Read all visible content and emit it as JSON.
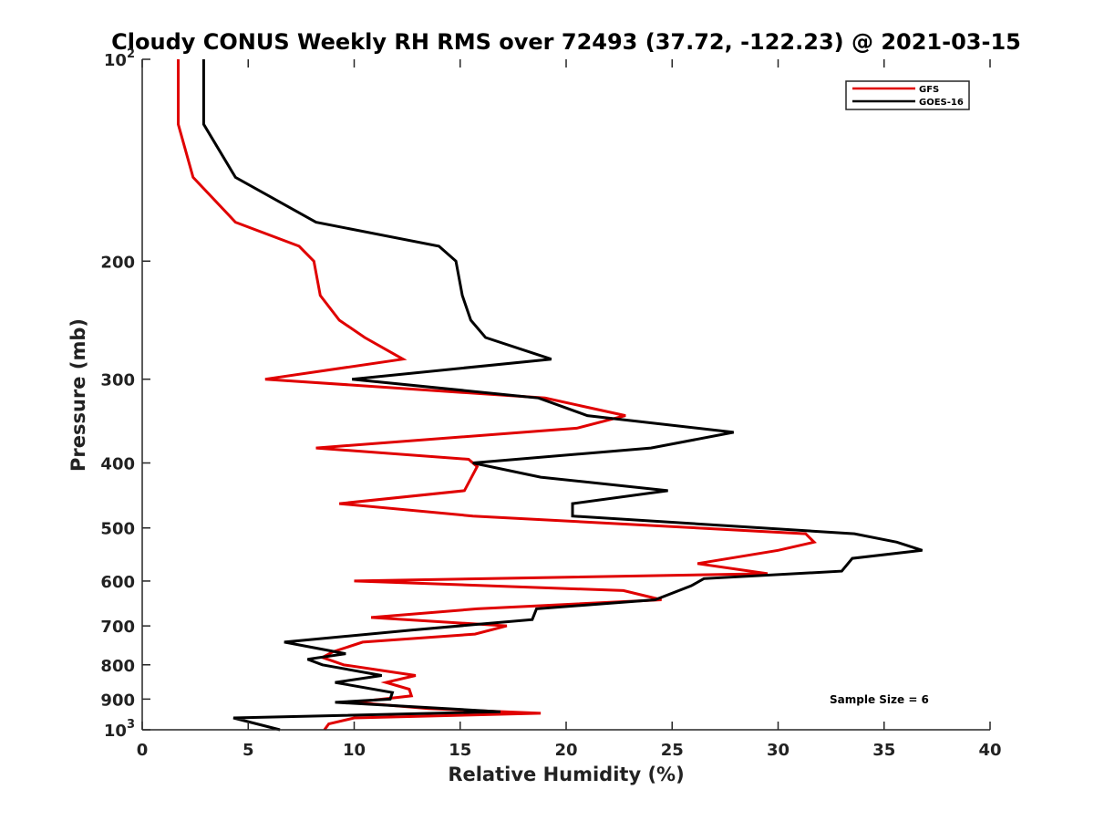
{
  "chart_data": {
    "type": "line",
    "title": "Cloudy CONUS Weekly RH RMS over 72493 (37.72, -122.23) @ 2021-03-15",
    "xlabel": "Relative Humidity (%)",
    "ylabel": "Pressure (mb)",
    "xlim": [
      0,
      40
    ],
    "ylim": [
      100,
      1000
    ],
    "y_scale": "log",
    "y_reversed": true,
    "grid": false,
    "legend_position": "top-right",
    "x_ticks": [
      0,
      5,
      10,
      15,
      20,
      25,
      30,
      35,
      40
    ],
    "x_tick_labels": [
      "0",
      "5",
      "10",
      "15",
      "20",
      "25",
      "30",
      "35",
      "40"
    ],
    "y_ticks": [
      100,
      200,
      300,
      400,
      500,
      600,
      700,
      800,
      900,
      1000
    ],
    "y_tick_labels": [
      {
        "base": "10",
        "exp": "2"
      },
      {
        "base": "200",
        "exp": ""
      },
      {
        "base": "300",
        "exp": ""
      },
      {
        "base": "400",
        "exp": ""
      },
      {
        "base": "500",
        "exp": ""
      },
      {
        "base": "600",
        "exp": ""
      },
      {
        "base": "700",
        "exp": ""
      },
      {
        "base": "800",
        "exp": ""
      },
      {
        "base": "900",
        "exp": ""
      },
      {
        "base": "10",
        "exp": "3"
      }
    ],
    "annotation": "Sample Size = 6",
    "series": [
      {
        "name": "GFS",
        "color": "#e00000",
        "points": [
          [
            1.7,
            100
          ],
          [
            1.7,
            125
          ],
          [
            2.4,
            150
          ],
          [
            4.4,
            175
          ],
          [
            7.4,
            190
          ],
          [
            8.1,
            200
          ],
          [
            8.4,
            225
          ],
          [
            9.3,
            245
          ],
          [
            10.5,
            260
          ],
          [
            12.3,
            280
          ],
          [
            5.8,
            300
          ],
          [
            19.0,
            320
          ],
          [
            22.8,
            340
          ],
          [
            20.5,
            355
          ],
          [
            8.2,
            380
          ],
          [
            15.4,
            395
          ],
          [
            15.8,
            405
          ],
          [
            15.2,
            440
          ],
          [
            9.3,
            460
          ],
          [
            15.6,
            480
          ],
          [
            31.3,
            510
          ],
          [
            31.7,
            525
          ],
          [
            30.0,
            540
          ],
          [
            26.2,
            565
          ],
          [
            29.5,
            585
          ],
          [
            10.0,
            600
          ],
          [
            22.7,
            620
          ],
          [
            24.5,
            640
          ],
          [
            15.8,
            660
          ],
          [
            10.8,
            680
          ],
          [
            17.2,
            700
          ],
          [
            15.7,
            720
          ],
          [
            10.4,
            740
          ],
          [
            9.0,
            765
          ],
          [
            8.5,
            780
          ],
          [
            9.5,
            800
          ],
          [
            12.9,
            830
          ],
          [
            11.5,
            850
          ],
          [
            12.6,
            870
          ],
          [
            12.7,
            890
          ],
          [
            10.0,
            910
          ],
          [
            13.5,
            930
          ],
          [
            18.8,
            945
          ],
          [
            10.0,
            960
          ],
          [
            8.8,
            980
          ],
          [
            8.6,
            1000
          ]
        ]
      },
      {
        "name": "GOES-16",
        "color": "#000000",
        "points": [
          [
            2.9,
            100
          ],
          [
            2.9,
            125
          ],
          [
            4.4,
            150
          ],
          [
            8.2,
            175
          ],
          [
            14.0,
            190
          ],
          [
            14.8,
            200
          ],
          [
            15.1,
            225
          ],
          [
            15.5,
            245
          ],
          [
            16.2,
            260
          ],
          [
            19.3,
            280
          ],
          [
            9.9,
            300
          ],
          [
            18.7,
            320
          ],
          [
            21.0,
            340
          ],
          [
            27.9,
            360
          ],
          [
            24.0,
            380
          ],
          [
            15.6,
            400
          ],
          [
            18.8,
            420
          ],
          [
            24.8,
            440
          ],
          [
            20.3,
            460
          ],
          [
            20.3,
            480
          ],
          [
            33.6,
            510
          ],
          [
            35.6,
            525
          ],
          [
            36.8,
            540
          ],
          [
            33.5,
            555
          ],
          [
            33.0,
            580
          ],
          [
            26.5,
            595
          ],
          [
            25.9,
            610
          ],
          [
            24.2,
            640
          ],
          [
            18.6,
            660
          ],
          [
            18.4,
            685
          ],
          [
            12.7,
            710
          ],
          [
            6.7,
            740
          ],
          [
            9.6,
            770
          ],
          [
            7.8,
            785
          ],
          [
            8.5,
            800
          ],
          [
            11.3,
            830
          ],
          [
            9.1,
            850
          ],
          [
            11.8,
            880
          ],
          [
            11.7,
            900
          ],
          [
            9.1,
            910
          ],
          [
            16.9,
            940
          ],
          [
            4.3,
            960
          ],
          [
            6.5,
            1000
          ]
        ]
      }
    ]
  }
}
